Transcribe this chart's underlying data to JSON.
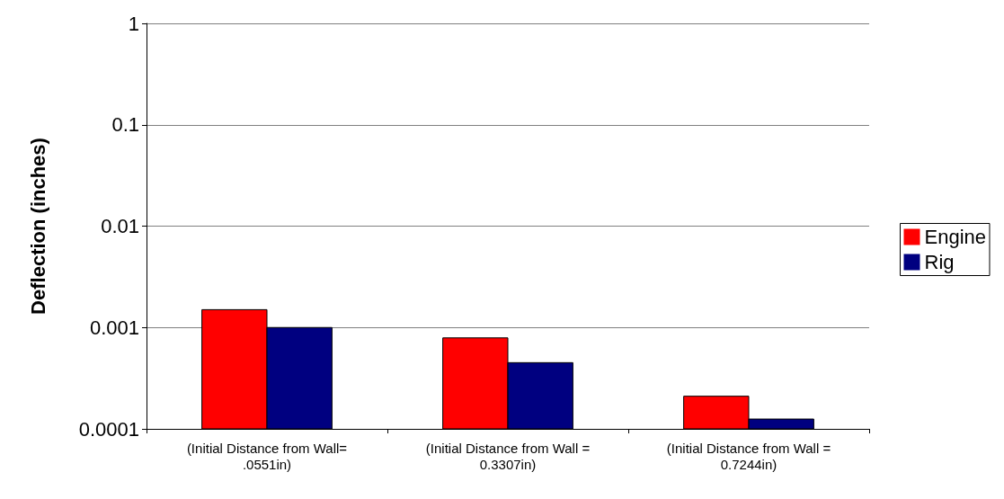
{
  "chart_data": {
    "type": "bar",
    "ylabel": "Deflection (inches)",
    "categories": [
      "(Initial Distance from Wall=\n.0551in)",
      "(Initial Distance from Wall =\n0.3307in)",
      "(Initial Distance from Wall =\n0.7244in)"
    ],
    "series": [
      {
        "name": "Engine",
        "color": "#ff0000",
        "values": [
          0.0015,
          0.00079,
          0.00021
        ]
      },
      {
        "name": "Rig",
        "color": "#000080",
        "values": [
          0.001,
          0.00045,
          0.000125
        ]
      }
    ],
    "log": "y",
    "ylim": [
      0.0001,
      1
    ],
    "yticks": [
      0.0001,
      0.001,
      0.01,
      0.1,
      1
    ],
    "grid": "y",
    "legend": "right"
  }
}
